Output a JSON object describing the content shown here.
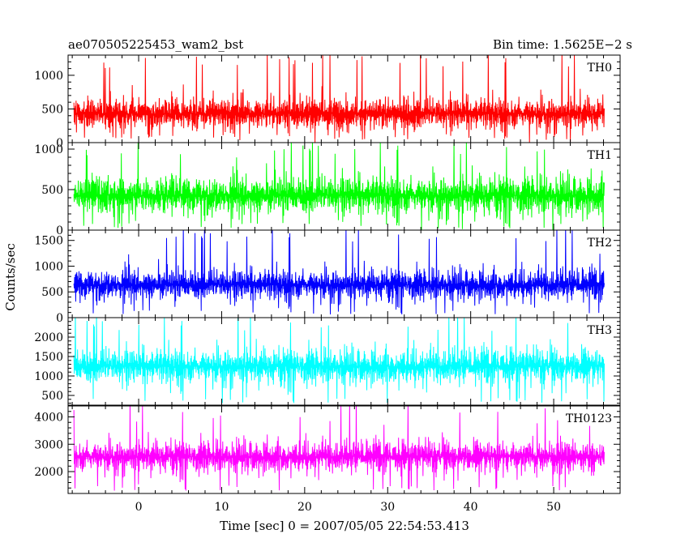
{
  "chart_data": {
    "type": "line",
    "title": "ae070505225453_wam2_bst",
    "subtitle": "Bin time: 1.5625E−2 s",
    "xlabel": "Time [sec] 0 = 2007/05/05 22:54:53.413",
    "ylabel": "Counts/sec",
    "xlim": [
      -8.5,
      58
    ],
    "x_ticks": [
      "0",
      "10",
      "20",
      "30",
      "40",
      "50"
    ],
    "x_tick_values": [
      0,
      10,
      20,
      30,
      40,
      50
    ],
    "grid": false,
    "panels": [
      {
        "name": "TH0",
        "color": "#ff0000",
        "ylim": [
          0,
          1300
        ],
        "y_ticks": [
          "0",
          "500",
          "1000"
        ],
        "y_tick_values": [
          0,
          500,
          1000
        ],
        "mean": 430,
        "spread": 230,
        "min": 40,
        "max": 1300,
        "x_start": -7.8,
        "x_end": 56.1
      },
      {
        "name": "TH1",
        "color": "#00ff00",
        "ylim": [
          0,
          1080
        ],
        "y_ticks": [
          "0",
          "500",
          "1000"
        ],
        "y_tick_values": [
          0,
          500,
          1000
        ],
        "mean": 430,
        "spread": 230,
        "min": 20,
        "max": 1080,
        "x_start": -7.8,
        "x_end": 56.1
      },
      {
        "name": "TH2",
        "color": "#0000ff",
        "ylim": [
          0,
          1700
        ],
        "y_ticks": [
          "0",
          "500",
          "1000",
          "1500"
        ],
        "y_tick_values": [
          0,
          500,
          1000,
          1500
        ],
        "mean": 640,
        "spread": 290,
        "min": 60,
        "max": 1700,
        "x_start": -7.8,
        "x_end": 56.1
      },
      {
        "name": "TH3",
        "color": "#00ffff",
        "ylim": [
          250,
          2500
        ],
        "y_ticks": [
          "500",
          "1000",
          "1500",
          "2000"
        ],
        "y_tick_values": [
          500,
          1000,
          1500,
          2000
        ],
        "mean": 1250,
        "spread": 440,
        "min": 300,
        "max": 2500,
        "x_start": -7.8,
        "x_end": 56.1
      },
      {
        "name": "TH0123",
        "color": "#ff00ff",
        "ylim": [
          1200,
          4400
        ],
        "y_ticks": [
          "2000",
          "3000",
          "4000"
        ],
        "y_tick_values": [
          2000,
          3000,
          4000
        ],
        "mean": 2550,
        "spread": 560,
        "min": 1300,
        "max": 4400,
        "x_start": -7.8,
        "x_end": 56.1
      }
    ]
  }
}
